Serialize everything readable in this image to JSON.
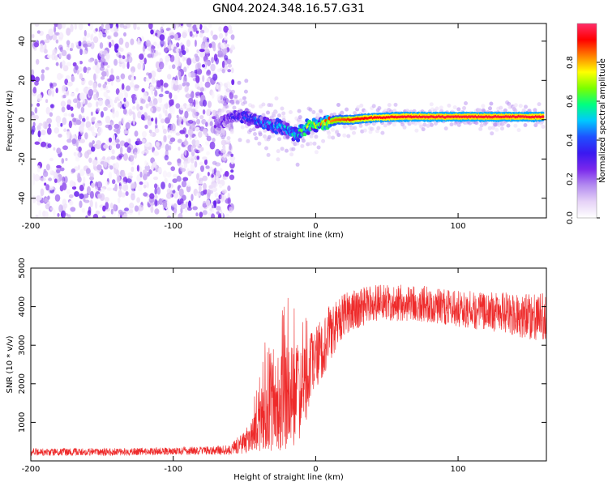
{
  "figure_title": "GN04.2024.348.16.57.G31",
  "colors": {
    "snr_line": "#ee2a2a",
    "axis": "#000000",
    "colorscale": [
      "#ffffff",
      "#e6d3f7",
      "#b48cf0",
      "#7a28ec",
      "#3a18f0",
      "#1f50ff",
      "#00c8ff",
      "#00ff80",
      "#7aff00",
      "#ffff00",
      "#ff8000",
      "#ff0000",
      "#ff2d6a"
    ]
  },
  "chart_data": [
    {
      "type": "heatmap",
      "xlabel": "Height of straight line (km)",
      "ylabel": "Frequency (Hz)",
      "xlim": [
        -200,
        162
      ],
      "ylim": [
        -50,
        49
      ],
      "xticks": [
        -200,
        -100,
        0,
        100
      ],
      "yticks": [
        -40,
        -20,
        0,
        20,
        40
      ],
      "colorbar": {
        "label": "Normalized spectral amplitude",
        "range": [
          0,
          1
        ],
        "ticks": [
          "0.0",
          "0.2",
          "0.4",
          "0.6",
          "0.8"
        ]
      },
      "noise_region": {
        "x_from": -200,
        "x_to": -58,
        "amplitude_range": [
          0.02,
          0.28
        ]
      },
      "signal_track": [
        {
          "x": -70,
          "freq": -3,
          "amplitude": 0.22
        },
        {
          "x": -60,
          "freq": 1,
          "amplitude": 0.3
        },
        {
          "x": -50,
          "freq": 2,
          "amplitude": 0.38
        },
        {
          "x": -40,
          "freq": -1,
          "amplitude": 0.42
        },
        {
          "x": -30,
          "freq": -3,
          "amplitude": 0.45
        },
        {
          "x": -20,
          "freq": -5,
          "amplitude": 0.5
        },
        {
          "x": -13,
          "freq": -8,
          "amplitude": 0.55
        },
        {
          "x": -8,
          "freq": -5,
          "amplitude": 0.62
        },
        {
          "x": -3,
          "freq": -3,
          "amplitude": 0.7
        },
        {
          "x": 5,
          "freq": -2,
          "amplitude": 0.78
        },
        {
          "x": 15,
          "freq": 0,
          "amplitude": 0.85
        },
        {
          "x": 25,
          "freq": 0,
          "amplitude": 0.9
        },
        {
          "x": 40,
          "freq": 1,
          "amplitude": 0.93
        },
        {
          "x": 60,
          "freq": 1.5,
          "amplitude": 0.95
        },
        {
          "x": 80,
          "freq": 1.5,
          "amplitude": 0.96
        },
        {
          "x": 100,
          "freq": 1.5,
          "amplitude": 0.96
        },
        {
          "x": 120,
          "freq": 1.5,
          "amplitude": 0.96
        },
        {
          "x": 140,
          "freq": 1.5,
          "amplitude": 0.96
        },
        {
          "x": 160,
          "freq": 1.5,
          "amplitude": 0.95
        }
      ]
    },
    {
      "type": "line",
      "xlabel": "Height of straight line (km)",
      "ylabel": "SNR (10 * v/v)",
      "xlim": [
        -200,
        162
      ],
      "ylim": [
        0,
        5000
      ],
      "xticks": [
        -200,
        -100,
        0,
        100
      ],
      "yticks": [
        1000,
        2000,
        3000,
        4000,
        5000
      ],
      "envelope": [
        {
          "x": -200,
          "mean": 230,
          "spread": 200
        },
        {
          "x": -150,
          "mean": 230,
          "spread": 200
        },
        {
          "x": -100,
          "mean": 250,
          "spread": 200
        },
        {
          "x": -60,
          "mean": 280,
          "spread": 250
        },
        {
          "x": -45,
          "mean": 600,
          "spread": 800
        },
        {
          "x": -35,
          "mean": 1300,
          "spread": 2000
        },
        {
          "x": -25,
          "mean": 1500,
          "spread": 2600
        },
        {
          "x": -15,
          "mean": 1600,
          "spread": 2800
        },
        {
          "x": -8,
          "mean": 2000,
          "spread": 2200
        },
        {
          "x": 0,
          "mean": 2600,
          "spread": 1800
        },
        {
          "x": 10,
          "mean": 3300,
          "spread": 1500
        },
        {
          "x": 20,
          "mean": 3800,
          "spread": 1100
        },
        {
          "x": 40,
          "mean": 4100,
          "spread": 950
        },
        {
          "x": 70,
          "mean": 4100,
          "spread": 950
        },
        {
          "x": 100,
          "mean": 3950,
          "spread": 950
        },
        {
          "x": 130,
          "mean": 3850,
          "spread": 1050
        },
        {
          "x": 150,
          "mean": 3750,
          "spread": 1200
        },
        {
          "x": 162,
          "mean": 3700,
          "spread": 1300
        }
      ]
    }
  ]
}
